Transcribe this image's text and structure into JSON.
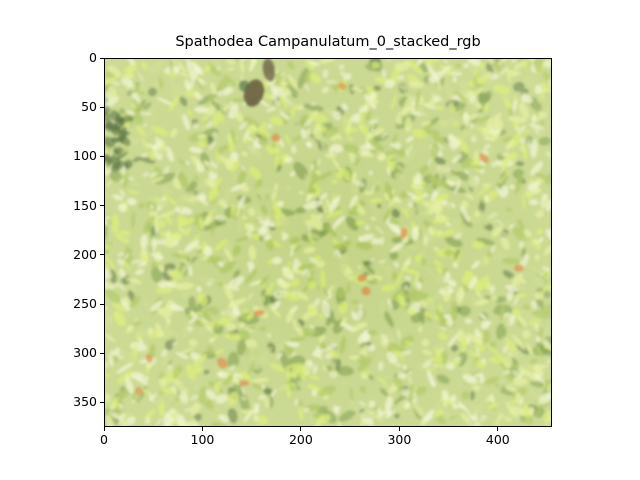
{
  "figure": {
    "title": "Spathodea Campanulatum_0_stacked_rgb",
    "image_description_colors": {
      "foliage_base": "#c9d98a",
      "foliage_light": "#e4ef9b",
      "foliage_bright": "#d8ec6c",
      "foliage_mid": "#a9c35a",
      "foliage_dark": "#6f8f3a",
      "shadow": "#3c5a28",
      "highlight": "#f2f5d2",
      "orange_spot": "#d98a46",
      "trunk": "#4a3a22"
    }
  },
  "axes": {
    "x_ticks": [
      "0",
      "100",
      "200",
      "300",
      "400"
    ],
    "y_ticks": [
      "0",
      "50",
      "100",
      "150",
      "200",
      "250",
      "300",
      "350"
    ],
    "x_range": [
      0,
      455
    ],
    "y_range": [
      0,
      375
    ]
  }
}
